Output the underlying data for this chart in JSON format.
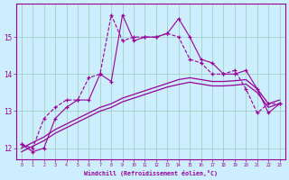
{
  "xlabel": "Windchill (Refroidissement éolien,°C)",
  "x": [
    0,
    1,
    2,
    3,
    4,
    5,
    6,
    7,
    8,
    9,
    10,
    11,
    12,
    13,
    14,
    15,
    16,
    17,
    18,
    19,
    20,
    21,
    22,
    23
  ],
  "line1": [
    12.1,
    11.9,
    12.0,
    12.8,
    13.1,
    13.3,
    13.3,
    14.0,
    13.8,
    15.6,
    14.9,
    15.0,
    15.0,
    15.1,
    15.5,
    15.0,
    14.4,
    14.3,
    14.0,
    14.0,
    14.1,
    13.6,
    12.95,
    13.2
  ],
  "line2": [
    12.1,
    12.0,
    12.8,
    13.1,
    13.3,
    13.3,
    13.9,
    14.0,
    15.6,
    14.9,
    15.0,
    15.0,
    15.0,
    15.1,
    15.0,
    14.4,
    14.3,
    14.0,
    14.0,
    14.1,
    13.6,
    12.95,
    13.2,
    13.2
  ],
  "line3": [
    12.0,
    12.15,
    12.3,
    12.5,
    12.65,
    12.8,
    12.95,
    13.1,
    13.2,
    13.35,
    13.45,
    13.55,
    13.65,
    13.75,
    13.85,
    13.9,
    13.85,
    13.8,
    13.8,
    13.82,
    13.85,
    13.6,
    13.2,
    13.3
  ],
  "line4": [
    11.9,
    12.05,
    12.2,
    12.4,
    12.55,
    12.7,
    12.85,
    13.0,
    13.1,
    13.25,
    13.35,
    13.45,
    13.55,
    13.65,
    13.72,
    13.78,
    13.73,
    13.68,
    13.68,
    13.7,
    13.73,
    13.5,
    13.1,
    13.2
  ],
  "bg_color": "#cceeff",
  "line_color": "#990099",
  "grid_color": "#99ccbb",
  "ylim": [
    11.7,
    15.9
  ],
  "yticks": [
    12,
    13,
    14,
    15
  ],
  "xticks": [
    0,
    1,
    2,
    3,
    4,
    5,
    6,
    7,
    8,
    9,
    10,
    11,
    12,
    13,
    14,
    15,
    16,
    17,
    18,
    19,
    20,
    21,
    22,
    23
  ]
}
